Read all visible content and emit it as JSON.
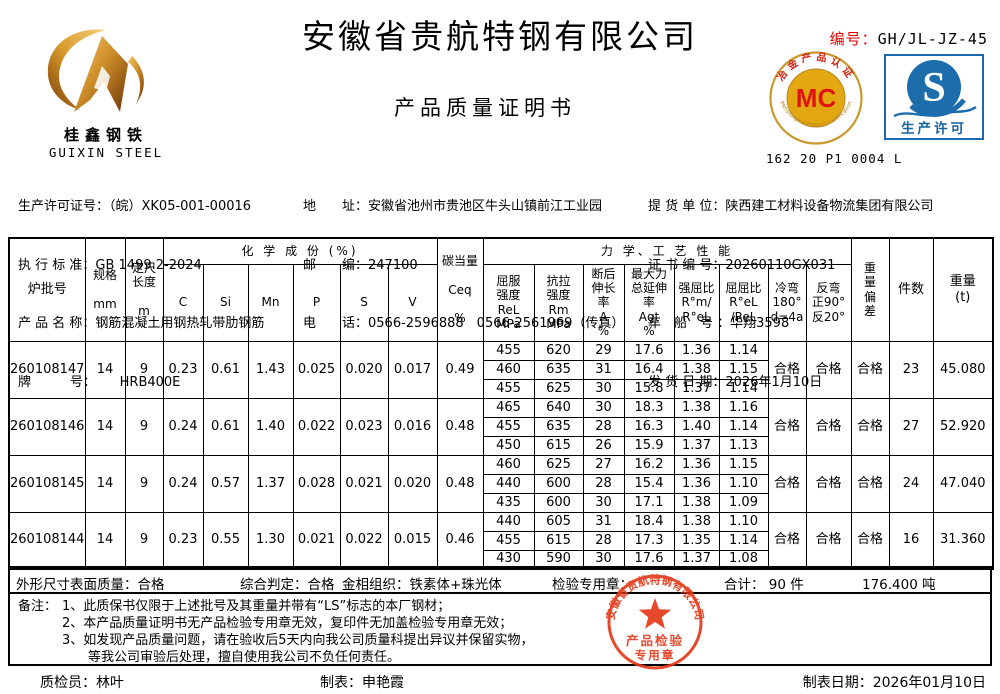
{
  "colors": {
    "label_red": "#e60000",
    "stamp_red": "#e4391b",
    "mc_gold": "#e3a711",
    "mc_red": "#e01310",
    "qs_blue": "#1d6dad",
    "table_border": "#000000"
  },
  "header": {
    "company": "安徽省贵航特钢有限公司",
    "doc_title": "产品质量证明书",
    "cert_no_label": "编号：",
    "cert_no": "GH/JL-JZ-45",
    "logo_cn": "桂鑫钢铁",
    "logo_en": "GUIXIN STEEL",
    "mc_mark": {
      "top_text": "冶金产品认证",
      "bottom_text": "Metallurgical Product Certification",
      "center": "MC",
      "code": "162 20 P1 0004 L"
    },
    "qs_mark": {
      "letter": "S",
      "label": "生产许可"
    }
  },
  "info": {
    "left": [
      "生产许可证号：（皖）XK05-001-00016",
      "执 行 标 准：GB 1499.2-2024",
      "产 品 名 称：钢筋混凝土用钢热轧带肋钢筋",
      "牌　　　号：　　 HRB400E"
    ],
    "mid": [
      "地　　址：安徽省池州市贵池区牛头山镇前江工业园",
      "邮　　编：247100",
      "电　　话：0566-2596888　0566-2561969（传真）"
    ],
    "right": [
      "提 货 单 位：陕西建工材料设备物流集团有限公司",
      "证 书 编 号：20260110GX031",
      "车　船　号 ：华翔3598",
      "发 货 日 期：2026年1月10日"
    ]
  },
  "table": {
    "h1": [
      "炉批号",
      "规格\n\nmm",
      "定尺\n长度\n\nm",
      "化 学 成 份 (%)",
      "碳当量\n\nCeq\n\n%",
      "力 学、工 艺 性 能",
      "重\n量\n偏\n差",
      "件数",
      "重量\n(t)"
    ],
    "h2": [
      "C",
      "Si",
      "Mn",
      "P",
      "S",
      "V",
      "屈服\n强度\nReL\nMPa",
      "抗拉\n强度\nRm\nMPa",
      "断后\n伸长\n率\nA\n%",
      "最大力\n总延伸\n率\nAgt\n%",
      "强屈比\nR°m/\nR°eL",
      "屈屈比\nR°eL\n/ReL",
      "冷弯\n180°\nd=4a",
      "反弯\n正90°\n反20°"
    ],
    "chem_keys": [
      "c",
      "si",
      "mn",
      "p",
      "s",
      "v"
    ],
    "mech_keys": [
      "rel",
      "rm",
      "a",
      "agt",
      "rm-over-rel",
      "rel-over-rel"
    ],
    "rows": [
      {
        "heat": "260108147",
        "spec": "14",
        "length": "9",
        "chem": [
          "0.23",
          "0.61",
          "1.43",
          "0.025",
          "0.020",
          "0.017"
        ],
        "ceq": "0.49",
        "mech": [
          [
            "455",
            "620",
            "29",
            "17.6",
            "1.36",
            "1.14"
          ],
          [
            "460",
            "635",
            "31",
            "16.4",
            "1.38",
            "1.15"
          ],
          [
            "455",
            "625",
            "30",
            "15.8",
            "1.37",
            "1.14"
          ]
        ],
        "cold_bend": "合格",
        "reverse_bend": "合格",
        "weight_dev": "合格",
        "pieces": "23",
        "weight": "45.080"
      },
      {
        "heat": "260108146",
        "spec": "14",
        "length": "9",
        "chem": [
          "0.24",
          "0.61",
          "1.40",
          "0.022",
          "0.023",
          "0.016"
        ],
        "ceq": "0.48",
        "mech": [
          [
            "465",
            "640",
            "30",
            "18.3",
            "1.38",
            "1.16"
          ],
          [
            "455",
            "635",
            "28",
            "16.3",
            "1.40",
            "1.14"
          ],
          [
            "450",
            "615",
            "26",
            "15.9",
            "1.37",
            "1.13"
          ]
        ],
        "cold_bend": "合格",
        "reverse_bend": "合格",
        "weight_dev": "合格",
        "pieces": "27",
        "weight": "52.920"
      },
      {
        "heat": "260108145",
        "spec": "14",
        "length": "9",
        "chem": [
          "0.24",
          "0.57",
          "1.37",
          "0.028",
          "0.021",
          "0.020"
        ],
        "ceq": "0.48",
        "mech": [
          [
            "460",
            "625",
            "27",
            "16.2",
            "1.36",
            "1.15"
          ],
          [
            "440",
            "600",
            "28",
            "15.4",
            "1.36",
            "1.10"
          ],
          [
            "435",
            "600",
            "30",
            "17.1",
            "1.38",
            "1.09"
          ]
        ],
        "cold_bend": "合格",
        "reverse_bend": "合格",
        "weight_dev": "合格",
        "pieces": "24",
        "weight": "47.040"
      },
      {
        "heat": "260108144",
        "spec": "14",
        "length": "9",
        "chem": [
          "0.23",
          "0.55",
          "1.30",
          "0.021",
          "0.022",
          "0.015"
        ],
        "ceq": "0.46",
        "mech": [
          [
            "440",
            "605",
            "31",
            "18.4",
            "1.38",
            "1.10"
          ],
          [
            "455",
            "615",
            "28",
            "17.3",
            "1.35",
            "1.14"
          ],
          [
            "430",
            "590",
            "30",
            "17.6",
            "1.37",
            "1.08"
          ]
        ],
        "cold_bend": "合格",
        "reverse_bend": "合格",
        "weight_dev": "合格",
        "pieces": "16",
        "weight": "31.360"
      }
    ]
  },
  "summary": {
    "surface": "外形尺寸表面质量：合格",
    "judgement": "综合判定：合格",
    "structure": "金相组织：铁素体+珠光体",
    "stamp_label": "检验专用章：",
    "total_pieces": "合计：  90 件",
    "total_weight": "176.400  吨"
  },
  "notes": {
    "label": "备注：",
    "lines": "1、此质保书仅限于上述批号及其重量并带有“LS”标志的本厂钢材；\n2、本产品质量证明书无产品检验专用章无效，复印件无加盖检验专用章无效；\n3、如发现产品质量问题，请在验收后5天内向我公司质量科提出异议并保留实物，\n　　等我公司审验后处理，擅自使用我公司不负任何责任。"
  },
  "stamp": {
    "arc_text": "安徽省贵航特钢有限公司",
    "line1": "产品检验",
    "line2": "专用章"
  },
  "footer": {
    "inspector": "质检员：林叶",
    "tabulator": "制表：申艳霞",
    "date": "制表日期：2026年01月10日"
  }
}
